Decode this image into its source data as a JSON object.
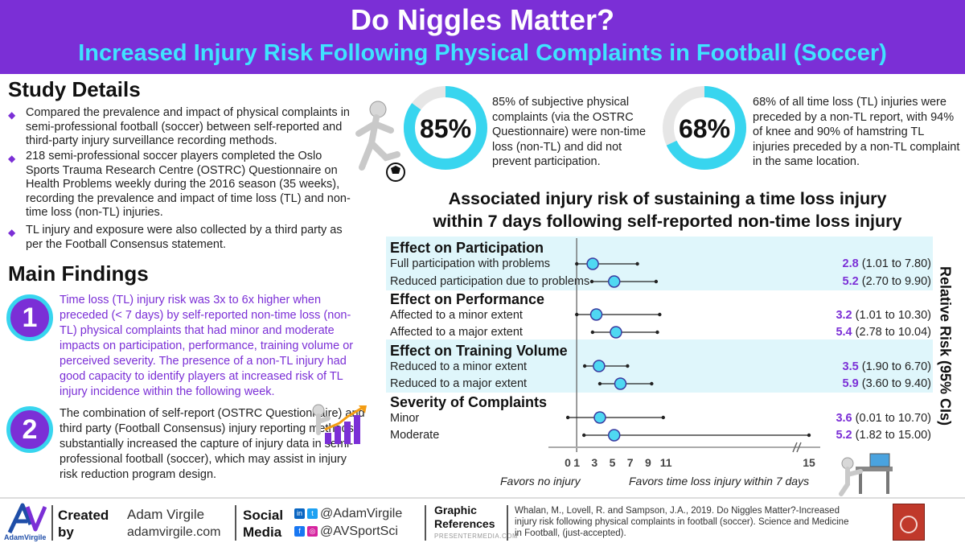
{
  "header": {
    "title": "Do Niggles Matter?",
    "subtitle": "Increased Injury Risk Following Physical Complaints in Football (Soccer)"
  },
  "study": {
    "title": "Study Details",
    "bullets": [
      "Compared the prevalence and impact of physical complaints in semi-professional football (soccer) between self-reported and third-party injury surveillance recording methods.",
      "218 semi-professional soccer players completed the Oslo Sports Trauma Research Centre (OSTRC) Questionnaire on Health Problems weekly during the 2016 season (35 weeks), recording the prevalence and impact of time loss (TL) and non-time loss (non-TL) injuries.",
      "TL injury and exposure were also collected by a third party as per the Football Consensus statement."
    ]
  },
  "findings": {
    "title": "Main Findings",
    "items": [
      {
        "num": "1",
        "text": "Time loss (TL) injury risk was 3x to 6x higher when preceded (< 7 days) by self-reported non-time loss (non-TL) physical complaints that had minor and moderate impacts on participation, performance, training volume or perceived severity. The presence of a non-TL injury had good capacity to identify players at increased risk of TL injury incidence within the following week."
      },
      {
        "num": "2",
        "text": "The combination of self-report (OSTRC Questionnaire) and third party (Football Consensus) injury reporting methods substantially increased the capture of injury data in semi-professional football (soccer), which may assist in injury risk reduction program design."
      }
    ]
  },
  "stats": [
    {
      "label": "85%",
      "value": 85,
      "text": "85% of subjective physical complaints (via the OSTRC Questionnaire) were non-time loss (non-TL) and did not prevent participation."
    },
    {
      "label": "68%",
      "value": 68,
      "text": "68% of all time loss (TL) injuries were preceded by a non-TL report, with 94% of knee and 90% of hamstring TL injuries preceded by a non-TL complaint in the same location."
    }
  ],
  "forest": {
    "title_line1": "Associated injury risk of sustaining a time loss injury",
    "title_line2": "within 7 days following self-reported non-time loss injury",
    "ylabel": "Relative Risk (95% CIs)",
    "favors_left": "Favors no injury",
    "favors_right": "Favors time loss injury within 7 days",
    "ticks": [
      "0",
      "1",
      "3",
      "5",
      "7",
      "9",
      "11",
      "15"
    ],
    "groups": [
      {
        "name": "Effect on Participation"
      },
      {
        "name": "Effect on Performance"
      },
      {
        "name": "Effect on Training Volume"
      },
      {
        "name": "Severity of Complaints"
      }
    ]
  },
  "chart_data": {
    "type": "forest",
    "xlabel": "",
    "ylabel": "Relative Risk (95% CIs)",
    "reference_line": 1,
    "axis_break": "between 11 and 15",
    "ticks": [
      0,
      1,
      3,
      5,
      7,
      9,
      11,
      15
    ],
    "rows": [
      {
        "group": "Effect on Participation",
        "label": "Full participation with problems",
        "rr": 2.8,
        "ci_low": 1.01,
        "ci_high": 7.8,
        "rr_text": "2.8",
        "ci_text": "(1.01 to 7.80)"
      },
      {
        "group": "Effect on Participation",
        "label": "Reduced participation due to problems",
        "rr": 5.2,
        "ci_low": 2.7,
        "ci_high": 9.9,
        "rr_text": "5.2",
        "ci_text": "(2.70 to 9.90)"
      },
      {
        "group": "Effect on Performance",
        "label": "Affected to a minor extent",
        "rr": 3.2,
        "ci_low": 1.01,
        "ci_high": 10.3,
        "rr_text": "3.2",
        "ci_text": "(1.01 to 10.30)"
      },
      {
        "group": "Effect on Performance",
        "label": "Affected to a major extent",
        "rr": 5.4,
        "ci_low": 2.78,
        "ci_high": 10.04,
        "rr_text": "5.4",
        "ci_text": "(2.78 to 10.04)"
      },
      {
        "group": "Effect on Training Volume",
        "label": "Reduced to a minor extent",
        "rr": 3.5,
        "ci_low": 1.9,
        "ci_high": 6.7,
        "rr_text": "3.5",
        "ci_text": "(1.90 to 6.70)"
      },
      {
        "group": "Effect on Training Volume",
        "label": "Reduced to a major extent",
        "rr": 5.9,
        "ci_low": 3.6,
        "ci_high": 9.4,
        "rr_text": "5.9",
        "ci_text": "(3.60 to 9.40)"
      },
      {
        "group": "Severity of Complaints",
        "label": "Minor",
        "rr": 3.6,
        "ci_low": 0.01,
        "ci_high": 10.7,
        "rr_text": "3.6",
        "ci_text": "(0.01 to 10.70)"
      },
      {
        "group": "Severity of Complaints",
        "label": "Moderate",
        "rr": 5.2,
        "ci_low": 1.82,
        "ci_high": 15.0,
        "rr_text": "5.2",
        "ci_text": "(1.82 to 15.00)"
      }
    ]
  },
  "footer": {
    "logo_text": "AdamVirgile",
    "created_label": "Created by",
    "author": "Adam Virgile",
    "website": "adamvirgile.com",
    "social_label": "Social Media",
    "handle_1": "@AdamVirgile",
    "handle_2": "@AVSportSci",
    "graphic_label": "Graphic References",
    "graphic_source": "PRESENTERMEDIA.COM",
    "citation": "Whalan, M., Lovell, R. and Sampson, J.A., 2019. Do Niggles Matter?-Increased injury risk following physical complaints in football (soccer). Science and Medicine in Football, (just-accepted)."
  },
  "colors": {
    "purple": "#7b2fd6",
    "cyan": "#3fe3ff",
    "ring": "#38d5ef",
    "ring_bg": "#e6e6e6"
  }
}
